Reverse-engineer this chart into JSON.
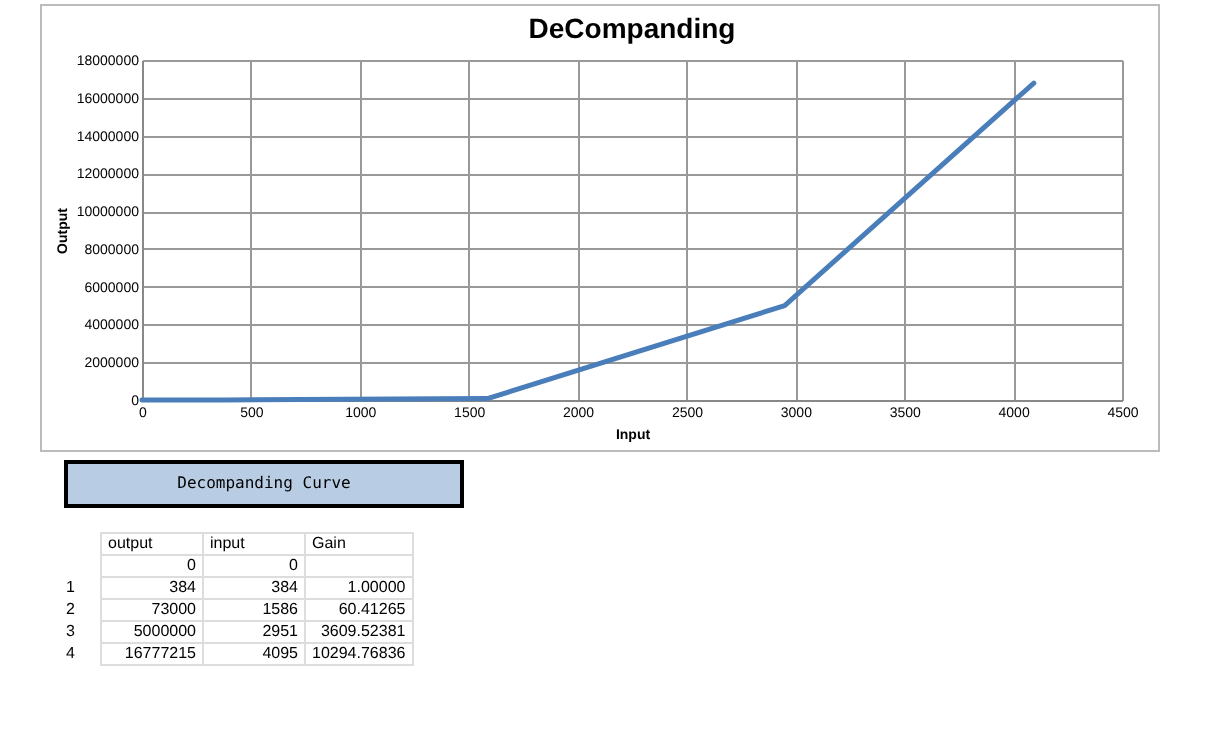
{
  "chart_data": {
    "type": "line",
    "title": "DeCompanding",
    "xlabel": "Input",
    "ylabel": "Output",
    "x": [
      0,
      384,
      1586,
      2951,
      4095
    ],
    "series": [
      {
        "color": "#4a7ebb",
        "values": [
          0,
          384,
          73000,
          5000000,
          16777215
        ]
      }
    ],
    "xlim": [
      0,
      4500
    ],
    "xticks": [
      0,
      500,
      1000,
      1500,
      2000,
      2500,
      3000,
      3500,
      4000,
      4500
    ],
    "ylim": [
      0,
      18000000
    ],
    "yticks": [
      0,
      2000000,
      4000000,
      6000000,
      8000000,
      10000000,
      12000000,
      14000000,
      16000000,
      18000000
    ],
    "grid": true,
    "marker": "none",
    "legend": false,
    "annotations": [
      "Decompanding Curve",
      null,
      "output",
      "input",
      "Gain",
      null,
      "0",
      "0",
      null,
      "1",
      "384",
      "384",
      "1.00000",
      "2",
      "73000",
      "1586",
      "60.41265",
      "3",
      "5000000",
      "2951",
      "3609.52381",
      "4",
      "16777215",
      "4095",
      "10294.76836"
    ]
  }
}
